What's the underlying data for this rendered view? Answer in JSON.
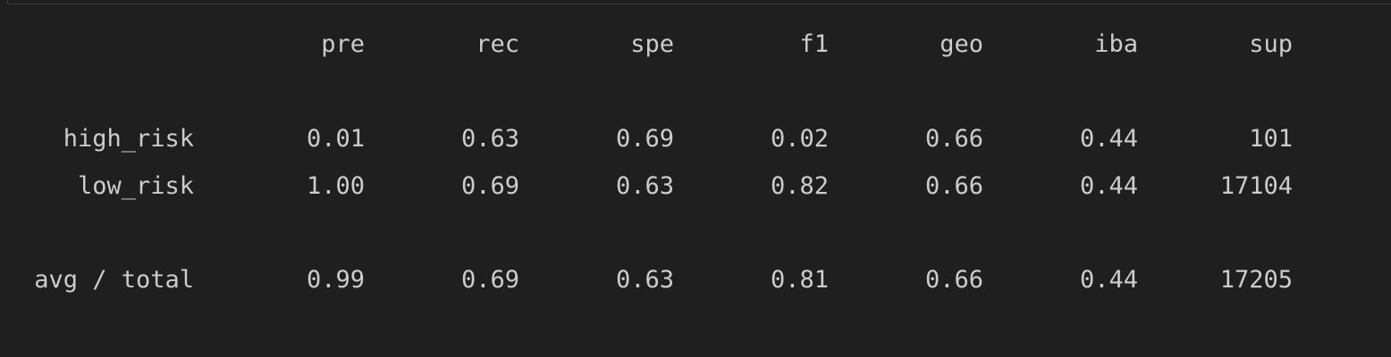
{
  "report": {
    "headers": [
      "pre",
      "rec",
      "spe",
      "f1",
      "geo",
      "iba",
      "sup"
    ],
    "rows": [
      {
        "label": "high_risk",
        "values": [
          "0.01",
          "0.63",
          "0.69",
          "0.02",
          "0.66",
          "0.44",
          "101"
        ]
      },
      {
        "label": "low_risk",
        "values": [
          "1.00",
          "0.69",
          "0.63",
          "0.82",
          "0.66",
          "0.44",
          "17104"
        ]
      },
      {
        "label": "avg / total",
        "values": [
          "0.99",
          "0.69",
          "0.63",
          "0.81",
          "0.66",
          "0.44",
          "17205"
        ]
      }
    ]
  },
  "colors": {
    "background": "#1f1f1f",
    "text": "#cccccc",
    "border": "#3c3c3c"
  }
}
